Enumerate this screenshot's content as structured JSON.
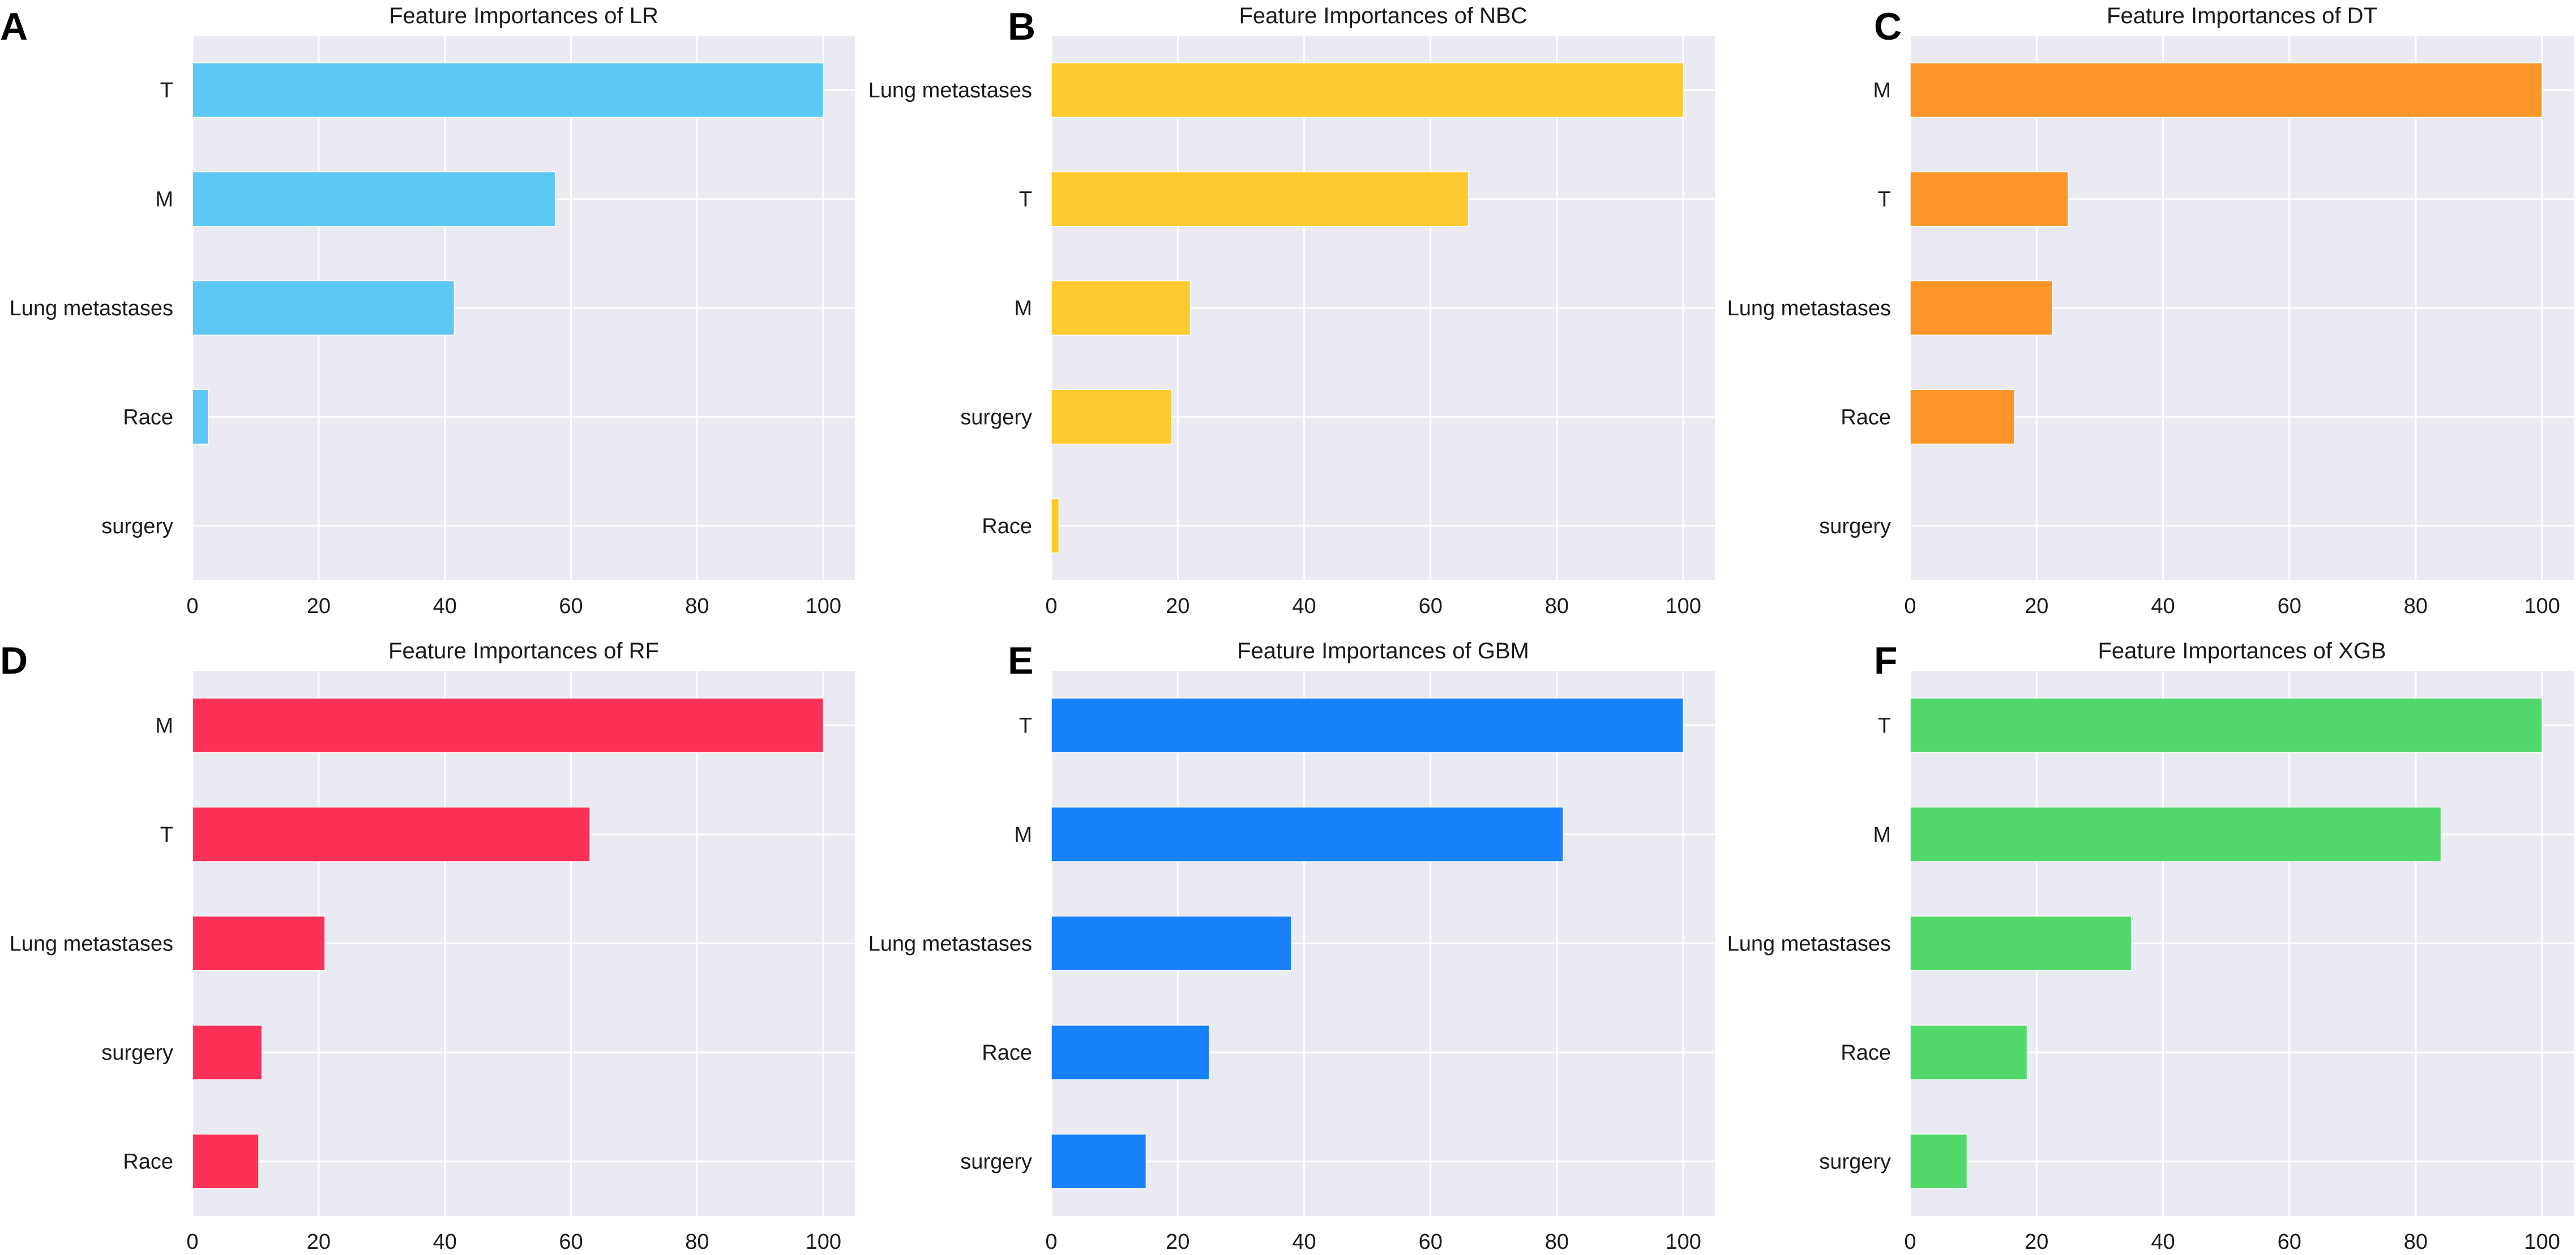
{
  "chart_data": [
    {
      "type": "bar",
      "orientation": "horizontal",
      "panel_label": "A",
      "title": "Feature Importances of LR",
      "categories": [
        "T",
        "M",
        "Lung metastases",
        "Race",
        "surgery"
      ],
      "values": [
        100,
        57.5,
        41.5,
        2.5,
        0
      ],
      "color": "#5DC8F5",
      "xlim": [
        0,
        105
      ],
      "xticks": [
        0,
        20,
        40,
        60,
        80,
        100
      ],
      "xlabel": "",
      "ylabel": "",
      "grid": true
    },
    {
      "type": "bar",
      "orientation": "horizontal",
      "panel_label": "B",
      "title": "Feature Importances of NBC",
      "categories": [
        "Lung metastases",
        "T",
        "M",
        "surgery",
        "Race"
      ],
      "values": [
        100,
        66,
        22,
        19,
        1.2
      ],
      "color": "#FDCA30",
      "xlim": [
        0,
        105
      ],
      "xticks": [
        0,
        20,
        40,
        60,
        80,
        100
      ],
      "xlabel": "",
      "ylabel": "",
      "grid": true
    },
    {
      "type": "bar",
      "orientation": "horizontal",
      "panel_label": "C",
      "title": "Feature Importances of DT",
      "categories": [
        "M",
        "T",
        "Lung metastases",
        "Race",
        "surgery"
      ],
      "values": [
        100,
        25,
        22.5,
        16.5,
        0
      ],
      "color": "#FD9629",
      "xlim": [
        0,
        105
      ],
      "xticks": [
        0,
        20,
        40,
        60,
        80,
        100
      ],
      "xlabel": "",
      "ylabel": "",
      "grid": true
    },
    {
      "type": "bar",
      "orientation": "horizontal",
      "panel_label": "D",
      "title": "Feature Importances of RF",
      "categories": [
        "M",
        "T",
        "Lung metastases",
        "surgery",
        "Race"
      ],
      "values": [
        100,
        63,
        21,
        11,
        10.5
      ],
      "color": "#FD3158",
      "xlim": [
        0,
        105
      ],
      "xticks": [
        0,
        20,
        40,
        60,
        80,
        100
      ],
      "xlabel": "",
      "ylabel": "",
      "grid": true
    },
    {
      "type": "bar",
      "orientation": "horizontal",
      "panel_label": "E",
      "title": "Feature Importances of GBM",
      "categories": [
        "T",
        "M",
        "Lung metastases",
        "Race",
        "surgery"
      ],
      "values": [
        100,
        81,
        38,
        25,
        15
      ],
      "color": "#1880FB",
      "xlim": [
        0,
        105
      ],
      "xticks": [
        0,
        20,
        40,
        60,
        80,
        100
      ],
      "xlabel": "",
      "ylabel": "",
      "grid": true
    },
    {
      "type": "bar",
      "orientation": "horizontal",
      "panel_label": "F",
      "title": "Feature Importances of XGB",
      "categories": [
        "T",
        "M",
        "Lung metastases",
        "Race",
        "surgery"
      ],
      "values": [
        100,
        84,
        35,
        18.5,
        9
      ],
      "color": "#52D86A",
      "xlim": [
        0,
        105
      ],
      "xticks": [
        0,
        20,
        40,
        60,
        80,
        100
      ],
      "xlabel": "",
      "ylabel": "",
      "grid": true
    }
  ],
  "style": {
    "plot_background": "#EAEAF2",
    "grid_color": "#FFFFFF",
    "text_color": "#1A1A1A"
  }
}
